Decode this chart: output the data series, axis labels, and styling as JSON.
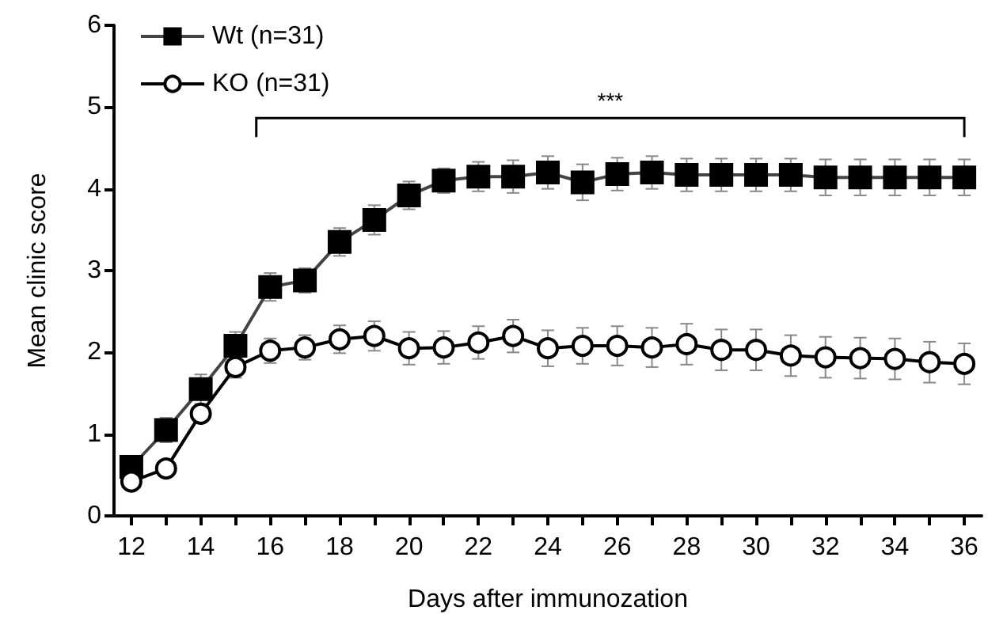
{
  "chart_data": {
    "type": "line",
    "xlabel": "Days after immunozation",
    "ylabel": "Mean clinic score",
    "x": [
      12,
      13,
      14,
      15,
      16,
      17,
      18,
      19,
      20,
      21,
      22,
      23,
      24,
      25,
      26,
      27,
      28,
      29,
      30,
      31,
      32,
      33,
      34,
      35,
      36
    ],
    "series": [
      {
        "name": "Wt (n=31)",
        "color": "#000000",
        "marker": "square",
        "values": [
          0.6,
          1.05,
          1.55,
          2.08,
          2.8,
          2.88,
          3.35,
          3.62,
          3.92,
          4.1,
          4.15,
          4.15,
          4.2,
          4.08,
          4.18,
          4.2,
          4.17,
          4.17,
          4.17,
          4.17,
          4.14,
          4.14,
          4.14,
          4.14,
          4.14
        ],
        "errors": [
          0.12,
          0.15,
          0.18,
          0.17,
          0.17,
          0.15,
          0.17,
          0.18,
          0.17,
          0.15,
          0.18,
          0.2,
          0.2,
          0.22,
          0.2,
          0.2,
          0.2,
          0.2,
          0.2,
          0.2,
          0.22,
          0.22,
          0.22,
          0.22,
          0.22
        ]
      },
      {
        "name": "KO (n=31)",
        "color": "#000000",
        "marker": "circle",
        "values": [
          0.42,
          0.58,
          1.25,
          1.82,
          2.02,
          2.06,
          2.16,
          2.2,
          2.05,
          2.06,
          2.12,
          2.2,
          2.05,
          2.08,
          2.08,
          2.06,
          2.1,
          2.03,
          2.03,
          1.96,
          1.94,
          1.93,
          1.92,
          1.88,
          1.86
        ],
        "errors": [
          0.05,
          0.05,
          0.1,
          0.13,
          0.15,
          0.15,
          0.17,
          0.18,
          0.2,
          0.2,
          0.2,
          0.2,
          0.22,
          0.22,
          0.24,
          0.24,
          0.25,
          0.25,
          0.25,
          0.25,
          0.25,
          0.25,
          0.25,
          0.25,
          0.25
        ]
      }
    ],
    "xlim": [
      11.5,
      36.5
    ],
    "xticks": [
      12,
      {
        "value": 13,
        "label": null
      },
      14,
      {
        "value": 15,
        "label": null
      },
      16,
      {
        "value": 17,
        "label": null
      },
      18,
      {
        "value": 19,
        "label": null
      },
      20,
      {
        "value": 21,
        "label": null
      },
      22,
      {
        "value": 23,
        "label": null
      },
      24,
      {
        "value": 25,
        "label": null
      },
      26,
      {
        "value": 27,
        "label": null
      },
      28,
      {
        "value": 29,
        "label": null
      },
      30,
      {
        "value": 31,
        "label": null
      },
      32,
      {
        "value": 33,
        "label": null
      },
      34,
      {
        "value": 35,
        "label": null
      },
      36
    ],
    "ylim": [
      0,
      6
    ],
    "yticks": [
      0,
      1,
      2,
      3,
      4,
      5,
      6
    ],
    "annotations": [
      "***"
    ],
    "legend": "top left",
    "grid": false,
    "line_style": "solid"
  }
}
